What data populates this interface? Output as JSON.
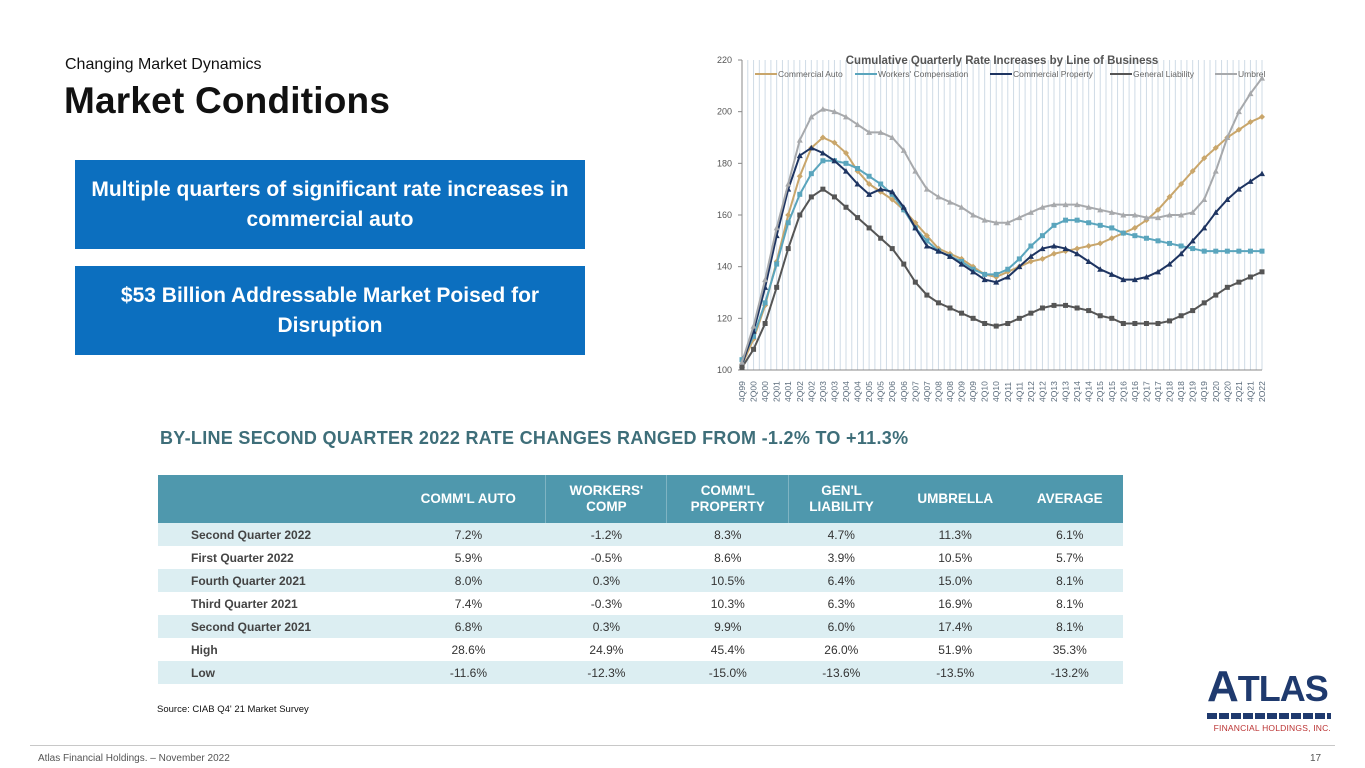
{
  "header": {
    "subtitle": "Changing Market Dynamics",
    "title": "Market Conditions"
  },
  "callouts": [
    "Multiple quarters of significant rate increases in commercial auto",
    "$53 Billion Addressable Market Poised for Disruption"
  ],
  "colors": {
    "callout_bg": "#0c6fbf",
    "table_header_bg": "#4f98ad",
    "table_heading": "#3e6e79",
    "logo_navy": "#1f3a6e",
    "logo_red": "#b33333"
  },
  "chart_data": {
    "type": "line",
    "title": "Cumulative Quarterly Rate Increases by Line of Business",
    "ylim": [
      100,
      220
    ],
    "yticks": [
      100,
      120,
      140,
      160,
      180,
      200,
      220
    ],
    "grid": "vertical lines per quarter",
    "legend_position": "top",
    "xlabels": [
      "4Q99",
      "2Q00",
      "4Q00",
      "2Q01",
      "4Q01",
      "2Q02",
      "4Q02",
      "2Q03",
      "4Q03",
      "2Q04",
      "4Q04",
      "2Q05",
      "4Q05",
      "2Q06",
      "4Q06",
      "2Q07",
      "4Q07",
      "2Q08",
      "4Q08",
      "2Q09",
      "4Q09",
      "2Q10",
      "4Q10",
      "2Q11",
      "4Q11",
      "2Q12",
      "4Q12",
      "2Q13",
      "4Q13",
      "2Q14",
      "4Q14",
      "2Q15",
      "4Q15",
      "2Q16",
      "4Q16",
      "2Q17",
      "4Q17",
      "2Q18",
      "4Q18",
      "2Q19",
      "4Q19",
      "2Q20",
      "4Q20",
      "2Q21",
      "4Q21",
      "2Q22"
    ],
    "series": [
      {
        "name": "Commercial Auto",
        "color": "#c9a66b",
        "marker": "diamond",
        "values": [
          102,
          112,
          125,
          142,
          160,
          175,
          186,
          190,
          188,
          184,
          177,
          172,
          169,
          166,
          162,
          157,
          152,
          147,
          145,
          143,
          140,
          137,
          136,
          138,
          140,
          142,
          143,
          145,
          146,
          147,
          148,
          149,
          151,
          153,
          155,
          158,
          162,
          167,
          172,
          177,
          182,
          186,
          190,
          193,
          196,
          198
        ]
      },
      {
        "name": "Workers' Compensation",
        "color": "#5aa5bd",
        "marker": "square",
        "values": [
          104,
          113,
          126,
          141,
          157,
          168,
          176,
          181,
          181,
          180,
          178,
          175,
          172,
          168,
          162,
          155,
          150,
          146,
          144,
          142,
          139,
          137,
          137,
          139,
          143,
          148,
          152,
          156,
          158,
          158,
          157,
          156,
          155,
          153,
          152,
          151,
          150,
          149,
          148,
          147,
          146,
          146,
          146,
          146,
          146,
          146
        ]
      },
      {
        "name": "Commercial Property",
        "color": "#1e3461",
        "marker": "triangle",
        "values": [
          102,
          115,
          132,
          152,
          170,
          183,
          186,
          184,
          181,
          177,
          172,
          168,
          170,
          169,
          163,
          155,
          148,
          146,
          144,
          141,
          138,
          135,
          134,
          136,
          140,
          144,
          147,
          148,
          147,
          145,
          142,
          139,
          137,
          135,
          135,
          136,
          138,
          141,
          145,
          150,
          155,
          161,
          166,
          170,
          173,
          176
        ]
      },
      {
        "name": "General Liability",
        "color": "#555555",
        "marker": "square",
        "values": [
          101,
          108,
          118,
          132,
          147,
          160,
          167,
          170,
          167,
          163,
          159,
          155,
          151,
          147,
          141,
          134,
          129,
          126,
          124,
          122,
          120,
          118,
          117,
          118,
          120,
          122,
          124,
          125,
          125,
          124,
          123,
          121,
          120,
          118,
          118,
          118,
          118,
          119,
          121,
          123,
          126,
          129,
          132,
          134,
          136,
          138
        ]
      },
      {
        "name": "Umbrella",
        "color": "#a7a9ac",
        "marker": "triangle",
        "values": [
          103,
          117,
          135,
          155,
          172,
          189,
          198,
          201,
          200,
          198,
          195,
          192,
          192,
          190,
          185,
          177,
          170,
          167,
          165,
          163,
          160,
          158,
          157,
          157,
          159,
          161,
          163,
          164,
          164,
          164,
          163,
          162,
          161,
          160,
          160,
          159,
          159,
          160,
          160,
          161,
          166,
          177,
          190,
          200,
          207,
          213
        ]
      }
    ]
  },
  "table": {
    "heading": "BY-LINE SECOND QUARTER 2022 RATE CHANGES RANGED FROM -1.2% TO +11.3%",
    "columns": [
      [
        "COMM'L AUTO"
      ],
      [
        "WORKERS'",
        "COMP"
      ],
      [
        "COMM'L",
        "PROPERTY"
      ],
      [
        "GEN'L",
        "LIABILITY"
      ],
      [
        "UMBRELLA"
      ],
      [
        "AVERAGE"
      ]
    ],
    "rows": [
      {
        "label": "Second Quarter 2022",
        "values": [
          "7.2%",
          "-1.2%",
          "8.3%",
          "4.7%",
          "11.3%",
          "6.1%"
        ]
      },
      {
        "label": "First Quarter 2022",
        "values": [
          "5.9%",
          "-0.5%",
          "8.6%",
          "3.9%",
          "10.5%",
          "5.7%"
        ]
      },
      {
        "label": "Fourth Quarter 2021",
        "values": [
          "8.0%",
          "0.3%",
          "10.5%",
          "6.4%",
          "15.0%",
          "8.1%"
        ]
      },
      {
        "label": "Third Quarter 2021",
        "values": [
          "7.4%",
          "-0.3%",
          "10.3%",
          "6.3%",
          "16.9%",
          "8.1%"
        ]
      },
      {
        "label": "Second Quarter 2021",
        "values": [
          "6.8%",
          "0.3%",
          "9.9%",
          "6.0%",
          "17.4%",
          "8.1%"
        ]
      },
      {
        "label": "High",
        "values": [
          "28.6%",
          "24.9%",
          "45.4%",
          "26.0%",
          "51.9%",
          "35.3%"
        ]
      },
      {
        "label": "Low",
        "values": [
          "-11.6%",
          "-12.3%",
          "-15.0%",
          "-13.6%",
          "-13.5%",
          "-13.2%"
        ]
      }
    ]
  },
  "source": "Source:  CIAB Q4' 21 Market Survey",
  "footer": {
    "text": "Atlas Financial Holdings. – November 2022",
    "page": "17"
  },
  "logo": {
    "first": "A",
    "rest": "TLAS",
    "sub": "FINANCIAL HOLDINGS, INC."
  }
}
